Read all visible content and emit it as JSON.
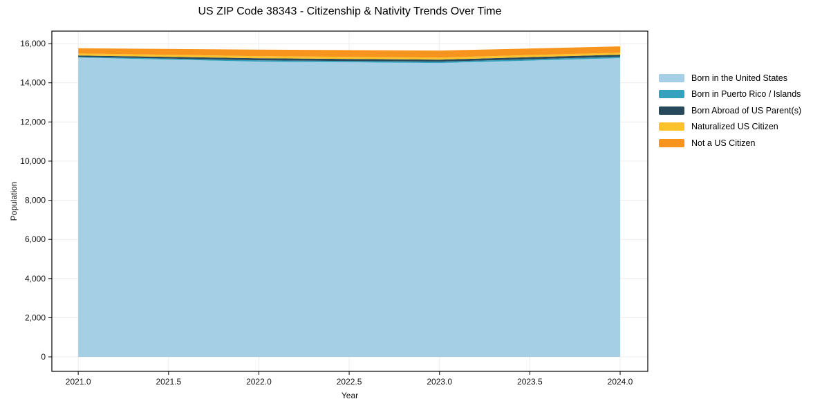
{
  "chart_data": {
    "type": "area",
    "stacked": true,
    "title": "US ZIP Code 38343 - Citizenship & Nativity Trends Over Time",
    "xlabel": "Year",
    "ylabel": "Population",
    "x": [
      2021,
      2022,
      2023,
      2024
    ],
    "series": [
      {
        "name": "Born in the United States",
        "color": "#a4cfe4",
        "values": [
          15290,
          15080,
          15010,
          15260
        ]
      },
      {
        "name": "Born in Puerto Rico / Islands",
        "color": "#35a2bd",
        "values": [
          35,
          70,
          70,
          70
        ]
      },
      {
        "name": "Born Abroad of US Parent(s)",
        "color": "#28495c",
        "values": [
          70,
          105,
          105,
          105
        ]
      },
      {
        "name": "Naturalized US Citizen",
        "color": "#fcc32d",
        "values": [
          105,
          105,
          105,
          105
        ]
      },
      {
        "name": "Not a US Citizen",
        "color": "#f7941e",
        "values": [
          265,
          335,
          355,
          320
        ]
      }
    ],
    "xticks": [
      2021.0,
      2021.5,
      2022.0,
      2022.5,
      2023.0,
      2023.5,
      2024.0
    ],
    "xtick_labels": [
      "2021.0",
      "2021.5",
      "2022.0",
      "2022.5",
      "2023.0",
      "2023.5",
      "2024.0"
    ],
    "yticks": [
      0,
      2000,
      4000,
      6000,
      8000,
      10000,
      12000,
      14000,
      16000
    ],
    "ytick_labels": [
      "0",
      "2,000",
      "4,000",
      "6,000",
      "8,000",
      "10,000",
      "12,000",
      "14,000",
      "16,000"
    ],
    "xlim": [
      2020.854,
      2024.153
    ],
    "ylim": [
      -740,
      16640
    ],
    "grid": true,
    "legend_position": "right-outside"
  },
  "colors": {
    "background": "#ffffff",
    "grid": "#ececec",
    "spine": "#000000",
    "tick_text": "#111111"
  }
}
